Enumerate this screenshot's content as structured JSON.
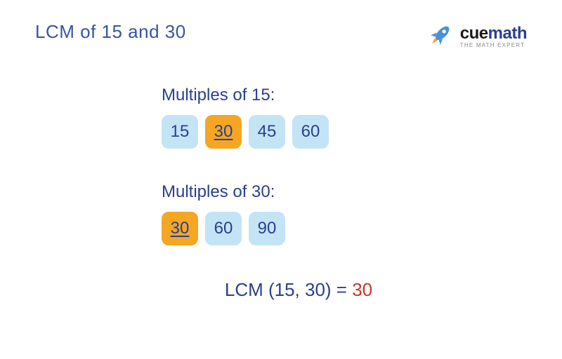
{
  "colors": {
    "title": "#3755a6",
    "section_title": "#2a3f8f",
    "chip_bg": "#c3e4f5",
    "chip_text": "#2a3f8f",
    "highlight_bg": "#f5a623",
    "highlight_text": "#2a3f8f",
    "result_label": "#2a3f8f",
    "result_value": "#c0392b",
    "brand_main": "#2a3f8f",
    "brand_alt": "#1a1a1a",
    "tagline": "#888888",
    "rocket_body": "#4a90d9",
    "rocket_flame": "#f5a623"
  },
  "title": "LCM of 15 and 30",
  "brand": {
    "pre": "cue",
    "post": "math",
    "tagline": "THE MATH EXPERT"
  },
  "sections": [
    {
      "title": "Multiples of 15:",
      "chips": [
        {
          "v": "15",
          "hl": false
        },
        {
          "v": "30",
          "hl": true
        },
        {
          "v": "45",
          "hl": false
        },
        {
          "v": "60",
          "hl": false
        }
      ]
    },
    {
      "title": "Multiples of 30:",
      "chips": [
        {
          "v": "30",
          "hl": true
        },
        {
          "v": "60",
          "hl": false
        },
        {
          "v": "90",
          "hl": false
        }
      ]
    }
  ],
  "result": {
    "label": "LCM (15, 30) = ",
    "value": "30"
  },
  "typography": {
    "title_fontsize": 26,
    "section_title_fontsize": 24,
    "chip_fontsize": 24,
    "result_fontsize": 26,
    "chip_radius": 10,
    "chip_height": 48
  }
}
